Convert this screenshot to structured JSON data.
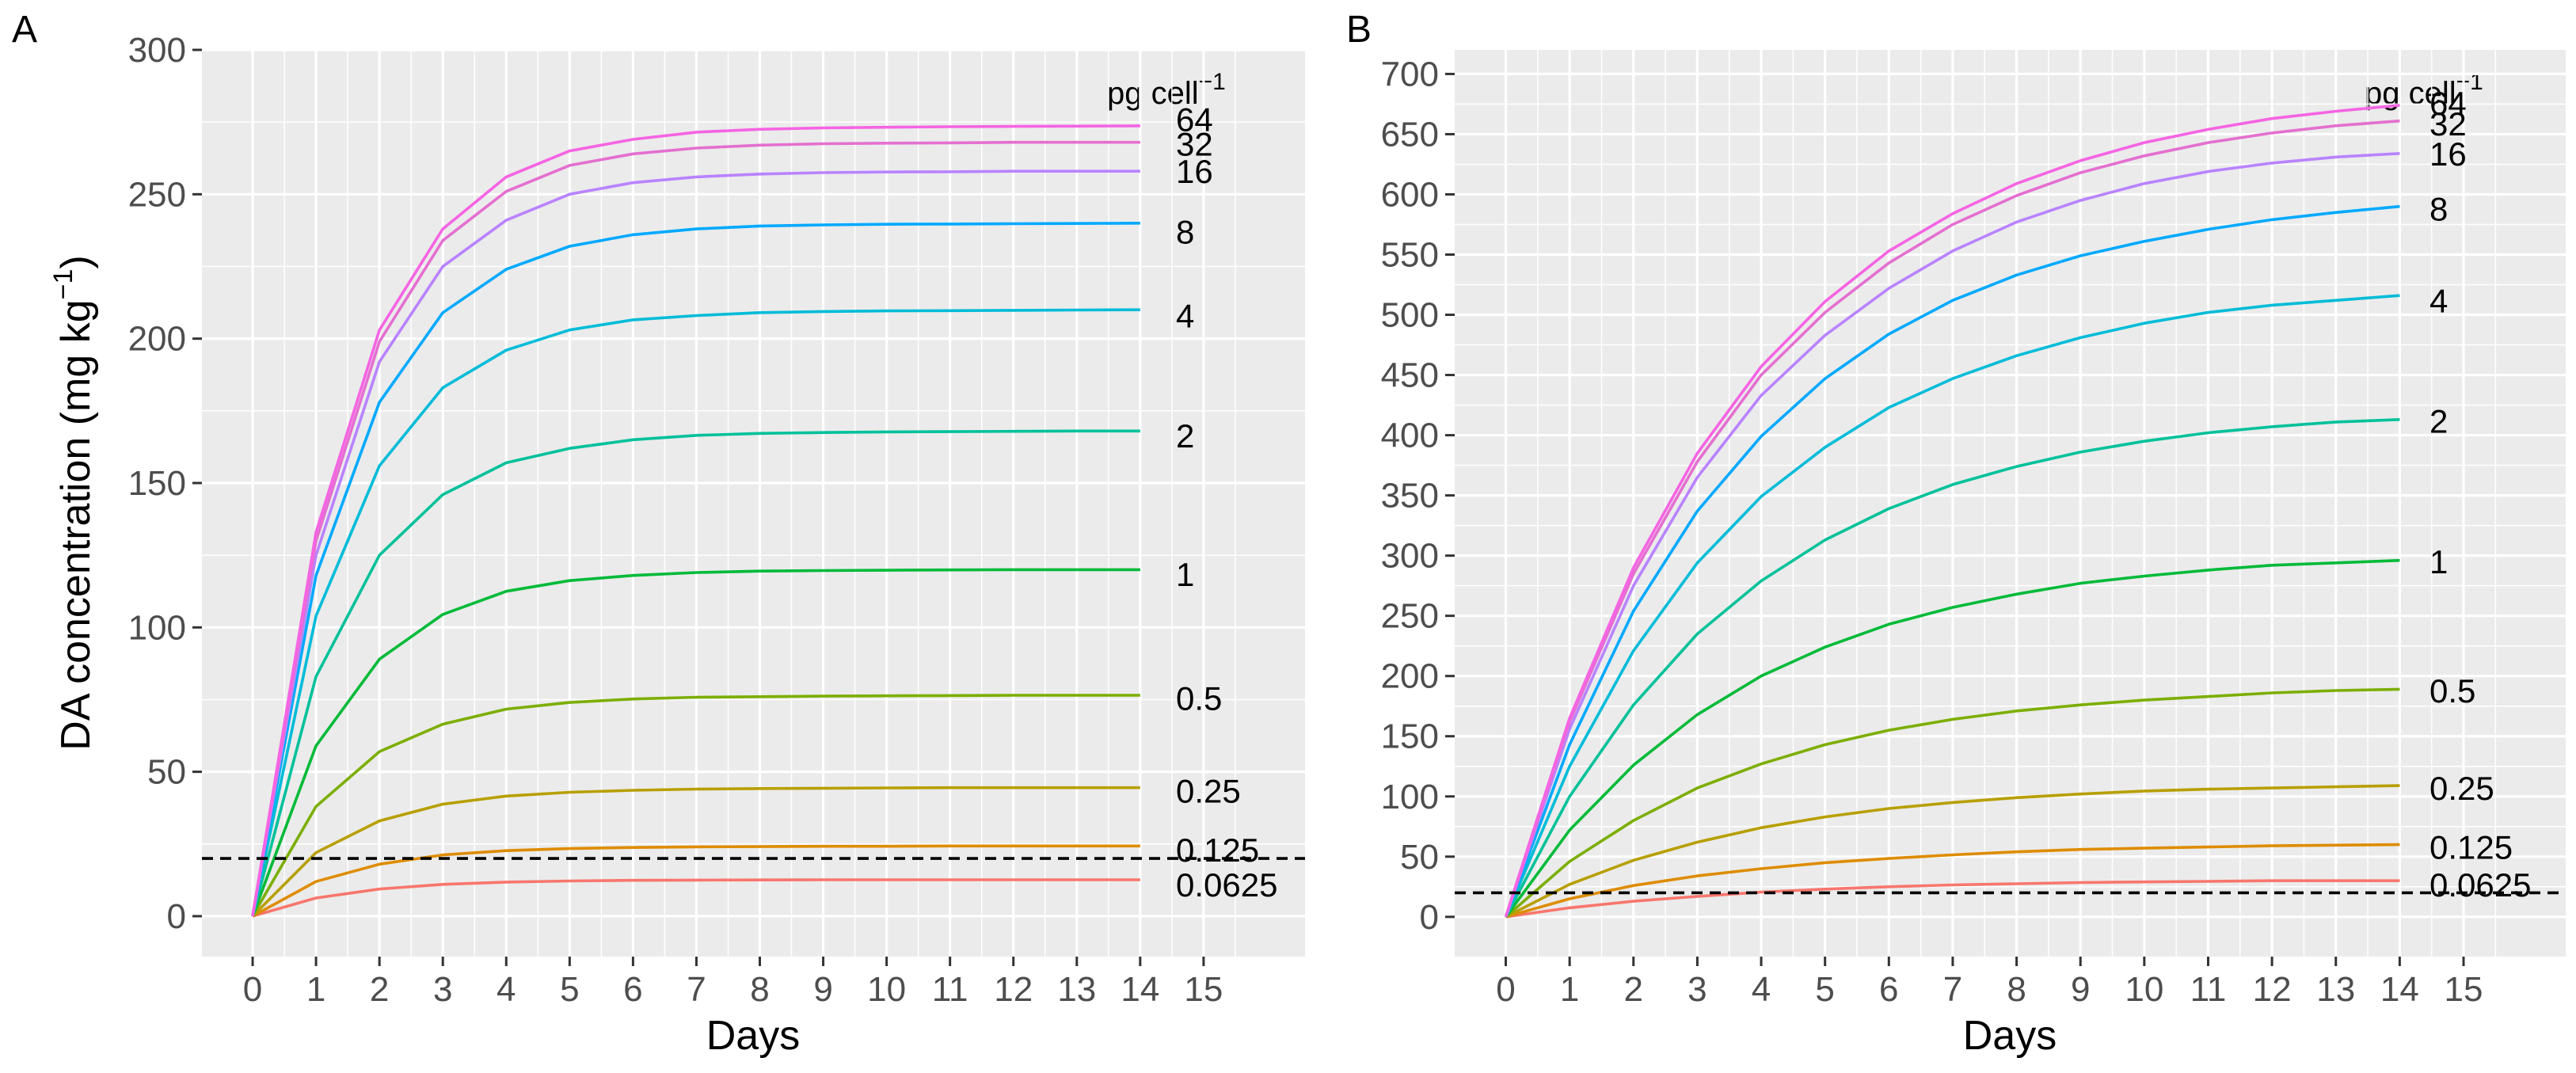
{
  "chart_data": [
    {
      "type": "line",
      "panel_tag": "A",
      "xlabel": "Days",
      "ylabel_main": "DA concentration (mg kg",
      "ylabel_sup": "−1",
      "ylabel_close": ")",
      "legend_title_main": "pg cell",
      "legend_title_sup": "−1",
      "x": [
        0,
        1,
        2,
        3,
        4,
        5,
        6,
        7,
        8,
        9,
        10,
        11,
        12,
        13,
        14
      ],
      "xticks": [
        "0",
        "1",
        "2",
        "3",
        "4",
        "5",
        "6",
        "7",
        "8",
        "9",
        "10",
        "11",
        "12",
        "13",
        "14",
        "15"
      ],
      "xlim": [
        -0.8,
        16.6
      ],
      "ylim": [
        -14,
        300
      ],
      "yticks": [
        "0",
        "50",
        "100",
        "150",
        "200",
        "250",
        "300"
      ],
      "threshold": 20,
      "grid": true,
      "series": [
        {
          "name": "64",
          "color": "#f564e3",
          "values": [
            0,
            133,
            203,
            238,
            256,
            265,
            269,
            271.5,
            272.5,
            273,
            273.2,
            273.4,
            273.5,
            273.6,
            273.7
          ]
        },
        {
          "name": "32",
          "color": "#e46fd0",
          "values": [
            0,
            130,
            199,
            234,
            251,
            260,
            264,
            266,
            267,
            267.5,
            267.7,
            267.8,
            268,
            268,
            268
          ]
        },
        {
          "name": "16",
          "color": "#b983ff",
          "values": [
            0,
            125,
            192,
            225,
            241,
            250,
            254,
            256,
            257,
            257.5,
            257.7,
            257.8,
            258,
            258,
            258
          ]
        },
        {
          "name": "8",
          "color": "#00a9ff",
          "values": [
            0,
            118,
            178,
            209,
            224,
            232,
            236,
            238,
            239,
            239.4,
            239.6,
            239.7,
            239.8,
            239.9,
            240
          ]
        },
        {
          "name": "4",
          "color": "#00bcd8",
          "values": [
            0,
            104,
            156,
            183,
            196,
            203,
            206.5,
            208,
            209,
            209.4,
            209.6,
            209.7,
            209.8,
            209.9,
            210
          ]
        },
        {
          "name": "2",
          "color": "#00c19a",
          "values": [
            0,
            83,
            125,
            146,
            157,
            162,
            165,
            166.5,
            167.2,
            167.5,
            167.7,
            167.8,
            167.9,
            168,
            168
          ]
        },
        {
          "name": "1",
          "color": "#00ba38",
          "values": [
            0,
            59,
            89,
            104.5,
            112.5,
            116.2,
            118,
            119,
            119.5,
            119.7,
            119.8,
            119.9,
            120,
            120,
            120
          ]
        },
        {
          "name": "0.5",
          "color": "#7cae00",
          "values": [
            0,
            38,
            57,
            66.5,
            71.7,
            74,
            75.2,
            75.8,
            76,
            76.2,
            76.3,
            76.4,
            76.5,
            76.5,
            76.5
          ]
        },
        {
          "name": "0.25",
          "color": "#b79f00",
          "values": [
            0,
            22,
            33,
            38.8,
            41.6,
            42.9,
            43.6,
            44,
            44.2,
            44.3,
            44.4,
            44.5,
            44.5,
            44.5,
            44.5
          ]
        },
        {
          "name": "0.125",
          "color": "#de8c00",
          "values": [
            0,
            12,
            18,
            21.2,
            22.7,
            23.4,
            23.8,
            24,
            24.1,
            24.2,
            24.2,
            24.3,
            24.3,
            24.3,
            24.3
          ]
        },
        {
          "name": "0.0625",
          "color": "#f8766d",
          "values": [
            0,
            6.3,
            9.4,
            11,
            11.8,
            12.2,
            12.4,
            12.5,
            12.55,
            12.6,
            12.6,
            12.6,
            12.6,
            12.6,
            12.6
          ]
        }
      ],
      "series_labels": [
        {
          "text": "64",
          "at": 276
        },
        {
          "text": "32",
          "at": 267.5
        },
        {
          "text": "16",
          "at": 258
        },
        {
          "text": "8",
          "at": 237
        },
        {
          "text": "4",
          "at": 208
        },
        {
          "text": "2",
          "at": 166.5
        },
        {
          "text": "1",
          "at": 118.5
        },
        {
          "text": "0.5",
          "at": 75.5
        },
        {
          "text": "0.25",
          "at": 43.5
        },
        {
          "text": "0.125",
          "at": 23
        },
        {
          "text": "0.0625",
          "at": 11
        }
      ]
    },
    {
      "type": "line",
      "panel_tag": "B",
      "xlabel": "Days",
      "legend_title_main": "pg cell",
      "legend_title_sup": "−1",
      "x": [
        0,
        1,
        2,
        3,
        4,
        5,
        6,
        7,
        8,
        9,
        10,
        11,
        12,
        13,
        14
      ],
      "xticks": [
        "0",
        "1",
        "2",
        "3",
        "4",
        "5",
        "6",
        "7",
        "8",
        "9",
        "10",
        "11",
        "12",
        "13",
        "14",
        "15"
      ],
      "xlim": [
        -0.8,
        16.6
      ],
      "ylim": [
        -33,
        720
      ],
      "yticks": [
        "0",
        "50",
        "100",
        "150",
        "200",
        "250",
        "300",
        "350",
        "400",
        "450",
        "500",
        "550",
        "600",
        "650",
        "700"
      ],
      "threshold": 20,
      "grid": true,
      "series": [
        {
          "name": "64",
          "color": "#f564e3",
          "values": [
            0,
            165,
            290,
            385,
            457,
            511,
            553,
            584,
            609,
            628,
            643,
            654,
            663,
            669,
            674
          ]
        },
        {
          "name": "32",
          "color": "#e46fd0",
          "values": [
            0,
            162,
            285,
            378,
            450,
            502,
            543,
            575,
            599,
            618,
            632,
            643,
            651,
            657,
            661
          ]
        },
        {
          "name": "16",
          "color": "#b983ff",
          "values": [
            0,
            156,
            275,
            365,
            433,
            483,
            522,
            553,
            577,
            595,
            609,
            619,
            626,
            631,
            634
          ]
        },
        {
          "name": "8",
          "color": "#00a9ff",
          "values": [
            0,
            143,
            254,
            337,
            399,
            447,
            484,
            512,
            533,
            549,
            561,
            571,
            579,
            585,
            590
          ]
        },
        {
          "name": "4",
          "color": "#00bcd8",
          "values": [
            0,
            125,
            221,
            294,
            349,
            390,
            423,
            447,
            466,
            481,
            493,
            502,
            508,
            512,
            516
          ]
        },
        {
          "name": "2",
          "color": "#00c19a",
          "values": [
            0,
            100,
            176,
            235,
            279,
            313,
            339,
            359,
            374,
            386,
            395,
            402,
            407,
            411,
            413
          ]
        },
        {
          "name": "1",
          "color": "#00ba38",
          "values": [
            0,
            72,
            126,
            168,
            200,
            224,
            243,
            257,
            268,
            277,
            283,
            288,
            292,
            294,
            296
          ]
        },
        {
          "name": "0.5",
          "color": "#7cae00",
          "values": [
            0,
            46,
            80,
            107,
            127,
            143,
            155,
            164,
            171,
            176,
            180,
            183,
            186,
            188,
            189
          ]
        },
        {
          "name": "0.25",
          "color": "#b79f00",
          "values": [
            0,
            27,
            47,
            62,
            74,
            83,
            90,
            95,
            99,
            102,
            104.5,
            106,
            107,
            108,
            109
          ]
        },
        {
          "name": "0.125",
          "color": "#de8c00",
          "values": [
            0,
            15,
            26,
            34,
            40,
            45,
            48.5,
            51.5,
            54,
            56,
            57,
            58,
            59,
            59.5,
            60
          ]
        },
        {
          "name": "0.0625",
          "color": "#f8766d",
          "values": [
            0,
            7.5,
            13,
            17,
            20.5,
            23,
            25,
            26.5,
            27.5,
            28.5,
            29,
            29.5,
            30,
            30,
            30
          ]
        }
      ],
      "series_labels": [
        {
          "text": "64",
          "at": 676
        },
        {
          "text": "32",
          "at": 659
        },
        {
          "text": "16",
          "at": 634
        },
        {
          "text": "8",
          "at": 588
        },
        {
          "text": "4",
          "at": 512
        },
        {
          "text": "2",
          "at": 412
        },
        {
          "text": "1",
          "at": 295
        },
        {
          "text": "0.5",
          "at": 188
        },
        {
          "text": "0.25",
          "at": 107
        },
        {
          "text": "0.125",
          "at": 58
        },
        {
          "text": "0.0625",
          "at": 27
        }
      ]
    }
  ]
}
